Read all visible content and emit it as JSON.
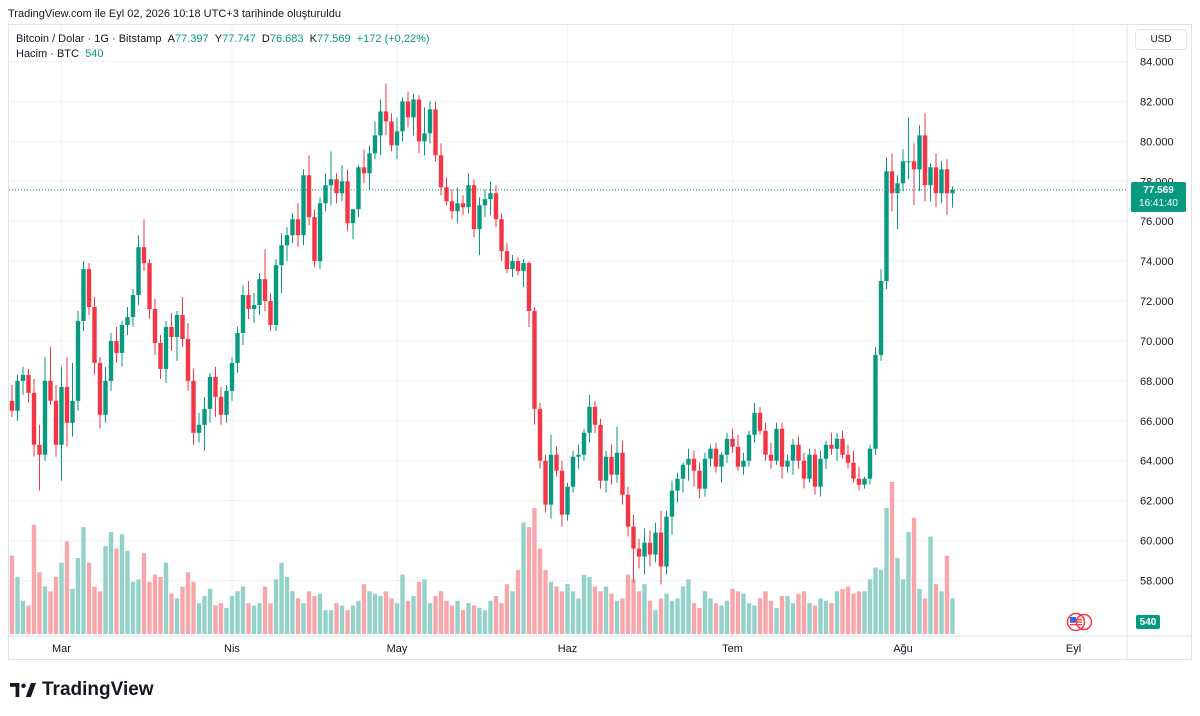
{
  "header": {
    "snapshot_text": "TradingView.com ile Eyl 02, 2026 10:18 UTC+3 tarihinde oluşturuldu"
  },
  "legend": {
    "symbol": "Bitcoin / Dolar · 1G · Bitstamp",
    "open_label": "A",
    "open_value": "77.397",
    "high_label": "Y",
    "high_value": "77.747",
    "low_label": "D",
    "low_value": "76.683",
    "close_label": "K",
    "close_value": "77.569",
    "change": "+172 (+0,22%)",
    "volume_label": "Hacim · BTC",
    "volume_value": "540"
  },
  "currency_button": "USD",
  "last_price": {
    "price": "77.569",
    "countdown": "16:41:40"
  },
  "volume_badge": "540",
  "logo_text": "TradingView",
  "colors": {
    "up": "#089981",
    "down": "#f23645",
    "vol_up": "#94d1ca",
    "vol_down": "#f7a7ac",
    "grid": "#f0f3fa",
    "axis_text": "#131722"
  },
  "chart_data": {
    "type": "candlestick",
    "title": "Bitcoin / Dolar · 1G · Bitstamp",
    "y_ticks": [
      "84.000",
      "82.000",
      "80.000",
      "78.000",
      "76.000",
      "74.000",
      "72.000",
      "70.000",
      "68.000",
      "66.000",
      "64.000",
      "62.000",
      "60.000",
      "58.000"
    ],
    "ylim": [
      56800,
      84900
    ],
    "x_ticks": [
      {
        "label": "Mar",
        "index": 9
      },
      {
        "label": "Nis",
        "index": 40
      },
      {
        "label": "May",
        "index": 70
      },
      {
        "label": "Haz",
        "index": 101
      },
      {
        "label": "Tem",
        "index": 131
      },
      {
        "label": "Ağu",
        "index": 162
      },
      {
        "label": "Eyl",
        "index": 193
      }
    ],
    "grid": true,
    "last_close": 77569,
    "candles": [
      [
        67000,
        67800,
        66200,
        66500
      ],
      [
        66500,
        68300,
        66000,
        68000
      ],
      [
        68000,
        68700,
        67300,
        68300
      ],
      [
        68300,
        68600,
        66900,
        67400
      ],
      [
        67400,
        68100,
        64200,
        64800
      ],
      [
        64800,
        65800,
        62500,
        64300
      ],
      [
        64300,
        69200,
        64000,
        68000
      ],
      [
        68000,
        69700,
        66800,
        67000
      ],
      [
        67000,
        67800,
        64200,
        64800
      ],
      [
        64800,
        68700,
        63000,
        67700
      ],
      [
        67700,
        69200,
        64700,
        65900
      ],
      [
        65900,
        68900,
        65200,
        67000
      ],
      [
        67000,
        71500,
        66500,
        71000
      ],
      [
        71000,
        74000,
        70500,
        73600
      ],
      [
        73600,
        73900,
        71300,
        71700
      ],
      [
        71700,
        72200,
        68300,
        68900
      ],
      [
        68900,
        69200,
        65600,
        66300
      ],
      [
        66300,
        68700,
        65900,
        68000
      ],
      [
        68000,
        70400,
        67500,
        70000
      ],
      [
        70000,
        70700,
        68900,
        69400
      ],
      [
        69400,
        71000,
        68700,
        70800
      ],
      [
        70800,
        71700,
        70300,
        71200
      ],
      [
        71200,
        72600,
        70700,
        72300
      ],
      [
        72300,
        75300,
        71800,
        74700
      ],
      [
        74700,
        76100,
        73500,
        73900
      ],
      [
        73900,
        74100,
        71100,
        71600
      ],
      [
        71600,
        72100,
        69300,
        69900
      ],
      [
        69900,
        70300,
        68100,
        68600
      ],
      [
        68600,
        71000,
        67900,
        70700
      ],
      [
        70700,
        71400,
        69500,
        70200
      ],
      [
        70200,
        71500,
        69000,
        71300
      ],
      [
        71300,
        72200,
        69700,
        70100
      ],
      [
        70100,
        70900,
        67500,
        68000
      ],
      [
        68000,
        68600,
        64800,
        65400
      ],
      [
        65400,
        66400,
        64900,
        65800
      ],
      [
        65800,
        67200,
        64500,
        66600
      ],
      [
        66600,
        68400,
        65900,
        68200
      ],
      [
        68200,
        68700,
        66200,
        67200
      ],
      [
        67200,
        67700,
        65800,
        66300
      ],
      [
        66300,
        67800,
        65900,
        67500
      ],
      [
        67500,
        69200,
        67000,
        68900
      ],
      [
        68900,
        70700,
        68400,
        70400
      ],
      [
        70400,
        72800,
        69800,
        72300
      ],
      [
        72300,
        73000,
        71100,
        71600
      ],
      [
        71600,
        72400,
        70900,
        71800
      ],
      [
        71800,
        73400,
        71300,
        73100
      ],
      [
        73100,
        74600,
        71500,
        72000
      ],
      [
        72000,
        72400,
        70500,
        70800
      ],
      [
        70800,
        74100,
        70500,
        73800
      ],
      [
        73800,
        75400,
        72400,
        74800
      ],
      [
        74800,
        75700,
        74000,
        75300
      ],
      [
        75300,
        76400,
        74900,
        76100
      ],
      [
        76100,
        76900,
        74700,
        75300
      ],
      [
        75300,
        78600,
        74800,
        78300
      ],
      [
        78300,
        79300,
        75800,
        76200
      ],
      [
        76200,
        76600,
        73700,
        74000
      ],
      [
        74000,
        77200,
        73600,
        76900
      ],
      [
        76900,
        78400,
        76500,
        77800
      ],
      [
        77800,
        79500,
        76800,
        78100
      ],
      [
        78100,
        78400,
        76900,
        77400
      ],
      [
        77400,
        78800,
        77000,
        78000
      ],
      [
        78000,
        78600,
        75500,
        75900
      ],
      [
        75900,
        76600,
        75100,
        76600
      ],
      [
        76600,
        78800,
        76200,
        78700
      ],
      [
        78700,
        79600,
        77900,
        78400
      ],
      [
        78400,
        79800,
        77600,
        79400
      ],
      [
        79400,
        81000,
        79100,
        80300
      ],
      [
        80300,
        82100,
        79300,
        81500
      ],
      [
        81500,
        82900,
        80300,
        81000
      ],
      [
        81000,
        81400,
        79500,
        79800
      ],
      [
        79800,
        81200,
        79100,
        80500
      ],
      [
        80500,
        82200,
        80000,
        82000
      ],
      [
        82000,
        82500,
        80700,
        81200
      ],
      [
        81200,
        82400,
        80300,
        82100
      ],
      [
        82100,
        82300,
        79400,
        80000
      ],
      [
        80000,
        81700,
        79300,
        80400
      ],
      [
        80400,
        82000,
        79900,
        81600
      ],
      [
        81600,
        82000,
        79000,
        79300
      ],
      [
        79300,
        79900,
        77300,
        77700
      ],
      [
        77700,
        78200,
        76800,
        77000
      ],
      [
        77000,
        77600,
        76100,
        76500
      ],
      [
        76500,
        77700,
        75900,
        76900
      ],
      [
        76900,
        77300,
        76300,
        76700
      ],
      [
        76700,
        78400,
        76400,
        77800
      ],
      [
        77800,
        78100,
        75200,
        75600
      ],
      [
        75600,
        77200,
        74300,
        76800
      ],
      [
        76800,
        77600,
        76200,
        77100
      ],
      [
        77100,
        78000,
        76300,
        77400
      ],
      [
        77400,
        77800,
        75700,
        76100
      ],
      [
        76100,
        76400,
        74000,
        74500
      ],
      [
        74500,
        74900,
        73400,
        73600
      ],
      [
        73600,
        74300,
        73200,
        74000
      ],
      [
        74000,
        74200,
        73300,
        73500
      ],
      [
        73500,
        74100,
        72700,
        73900
      ],
      [
        73900,
        74000,
        70700,
        71500
      ],
      [
        71500,
        71700,
        65800,
        66600
      ],
      [
        66600,
        66900,
        63600,
        64000
      ],
      [
        64000,
        64300,
        61400,
        61800
      ],
      [
        61800,
        65300,
        61100,
        64300
      ],
      [
        64300,
        64700,
        63200,
        63500
      ],
      [
        63500,
        64000,
        60700,
        61300
      ],
      [
        61300,
        62900,
        61000,
        62700
      ],
      [
        62700,
        64500,
        62400,
        64200
      ],
      [
        64200,
        64800,
        63600,
        64300
      ],
      [
        64300,
        65600,
        64000,
        65400
      ],
      [
        65400,
        67300,
        64900,
        66700
      ],
      [
        66700,
        67000,
        65400,
        65800
      ],
      [
        65800,
        66100,
        62600,
        63000
      ],
      [
        63000,
        64500,
        62400,
        64200
      ],
      [
        64200,
        64800,
        62800,
        63300
      ],
      [
        63300,
        65700,
        62900,
        64400
      ],
      [
        64400,
        65000,
        61800,
        62300
      ],
      [
        62300,
        62700,
        60200,
        60700
      ],
      [
        60700,
        61300,
        57900,
        59600
      ],
      [
        59600,
        60100,
        58600,
        59200
      ],
      [
        59200,
        60600,
        58300,
        59900
      ],
      [
        59900,
        60500,
        58700,
        59300
      ],
      [
        59300,
        60900,
        58900,
        60400
      ],
      [
        60400,
        61500,
        57800,
        58700
      ],
      [
        58700,
        61500,
        58300,
        61200
      ],
      [
        61200,
        63000,
        60300,
        62500
      ],
      [
        62500,
        63400,
        61900,
        63100
      ],
      [
        63100,
        63900,
        62400,
        63800
      ],
      [
        63800,
        64600,
        63000,
        64100
      ],
      [
        64100,
        64500,
        62700,
        63500
      ],
      [
        63500,
        63900,
        62100,
        62600
      ],
      [
        62600,
        64400,
        62200,
        64100
      ],
      [
        64100,
        64800,
        63700,
        64600
      ],
      [
        64600,
        64900,
        63400,
        63700
      ],
      [
        63700,
        64400,
        62900,
        64300
      ],
      [
        64300,
        65400,
        63900,
        65100
      ],
      [
        65100,
        65600,
        64400,
        64700
      ],
      [
        64700,
        65300,
        63500,
        63700
      ],
      [
        63700,
        64400,
        63300,
        64000
      ],
      [
        64000,
        65500,
        63700,
        65300
      ],
      [
        65300,
        66900,
        64900,
        66400
      ],
      [
        66400,
        66700,
        65300,
        65500
      ],
      [
        65500,
        65900,
        64000,
        64300
      ],
      [
        64300,
        64900,
        63600,
        64000
      ],
      [
        64000,
        65900,
        63800,
        65600
      ],
      [
        65600,
        65900,
        63100,
        63700
      ],
      [
        63700,
        64300,
        63400,
        64000
      ],
      [
        64000,
        65100,
        63300,
        64800
      ],
      [
        64800,
        65200,
        63600,
        64000
      ],
      [
        64000,
        64400,
        62600,
        63100
      ],
      [
        63100,
        64600,
        62900,
        64300
      ],
      [
        64300,
        64600,
        62300,
        62700
      ],
      [
        62700,
        64500,
        62200,
        64100
      ],
      [
        64100,
        65000,
        63600,
        64800
      ],
      [
        64800,
        65400,
        64300,
        64600
      ],
      [
        64600,
        65400,
        64000,
        65100
      ],
      [
        65100,
        65500,
        64100,
        64300
      ],
      [
        64300,
        64800,
        63600,
        63900
      ],
      [
        63900,
        64500,
        62900,
        63100
      ],
      [
        63100,
        63700,
        62500,
        62800
      ],
      [
        62800,
        63200,
        62600,
        63100
      ],
      [
        63100,
        64800,
        62800,
        64600
      ],
      [
        64600,
        69700,
        64300,
        69300
      ],
      [
        69300,
        73600,
        69000,
        73000
      ],
      [
        73000,
        79200,
        72600,
        78500
      ],
      [
        78500,
        79400,
        76500,
        77400
      ],
      [
        77400,
        78300,
        75600,
        77900
      ],
      [
        77900,
        79600,
        77500,
        79000
      ],
      [
        79000,
        81200,
        78100,
        79000
      ],
      [
        79000,
        79900,
        76800,
        78600
      ],
      [
        78600,
        80800,
        77500,
        80300
      ],
      [
        80300,
        81400,
        77000,
        77800
      ],
      [
        77800,
        78900,
        77000,
        78700
      ],
      [
        78700,
        79400,
        76700,
        77400
      ],
      [
        77400,
        79000,
        76900,
        78600
      ],
      [
        78600,
        79100,
        76300,
        77400
      ],
      [
        77400,
        77750,
        76680,
        77569
      ]
    ],
    "volume": {
      "unit": "BTC",
      "last": 540,
      "values": [
        3300,
        2400,
        1400,
        1200,
        4600,
        2600,
        2000,
        1800,
        2400,
        3000,
        3900,
        1900,
        3200,
        4500,
        3000,
        2000,
        1800,
        3700,
        4300,
        3600,
        4200,
        3500,
        2200,
        2300,
        3400,
        2200,
        2500,
        2400,
        3000,
        1700,
        1500,
        2000,
        2600,
        2200,
        1300,
        1600,
        1900,
        1200,
        1300,
        1100,
        1600,
        1800,
        2000,
        1300,
        1200,
        1300,
        2000,
        1300,
        2300,
        3000,
        2400,
        1800,
        1500,
        1300,
        1800,
        1600,
        1700,
        1000,
        1000,
        1300,
        1200,
        1000,
        1200,
        1400,
        2100,
        1800,
        1700,
        1600,
        1800,
        1500,
        1300,
        2500,
        1400,
        1600,
        2200,
        2300,
        1300,
        1600,
        1800,
        1400,
        1200,
        1400,
        1000,
        1300,
        1200,
        1100,
        1000,
        1400,
        1600,
        1300,
        2100,
        1800,
        2700,
        4700,
        4500,
        5300,
        3600,
        2700,
        2200,
        2000,
        1800,
        2100,
        1800,
        1500,
        2500,
        2400,
        2000,
        1800,
        2000,
        1700,
        1400,
        1500,
        2500,
        2300,
        1800,
        2100,
        1400,
        1000,
        1500,
        1700,
        1400,
        1500,
        2000,
        2300,
        1300,
        1100,
        1800,
        1500,
        1300,
        1200,
        1400,
        1900,
        1800,
        1700,
        1300,
        1200,
        1500,
        1800,
        1400,
        1100,
        1600,
        1600,
        1300,
        1700,
        1800,
        1300,
        1200,
        1500,
        1400,
        1300,
        1800,
        1900,
        2000,
        1700,
        1800,
        1800,
        2300,
        2800,
        2700,
        5300,
        6400,
        3200,
        2300,
        4300,
        4900,
        1900,
        1500,
        4100,
        2100,
        1800,
        3300,
        1500,
        1200,
        540
      ]
    }
  }
}
